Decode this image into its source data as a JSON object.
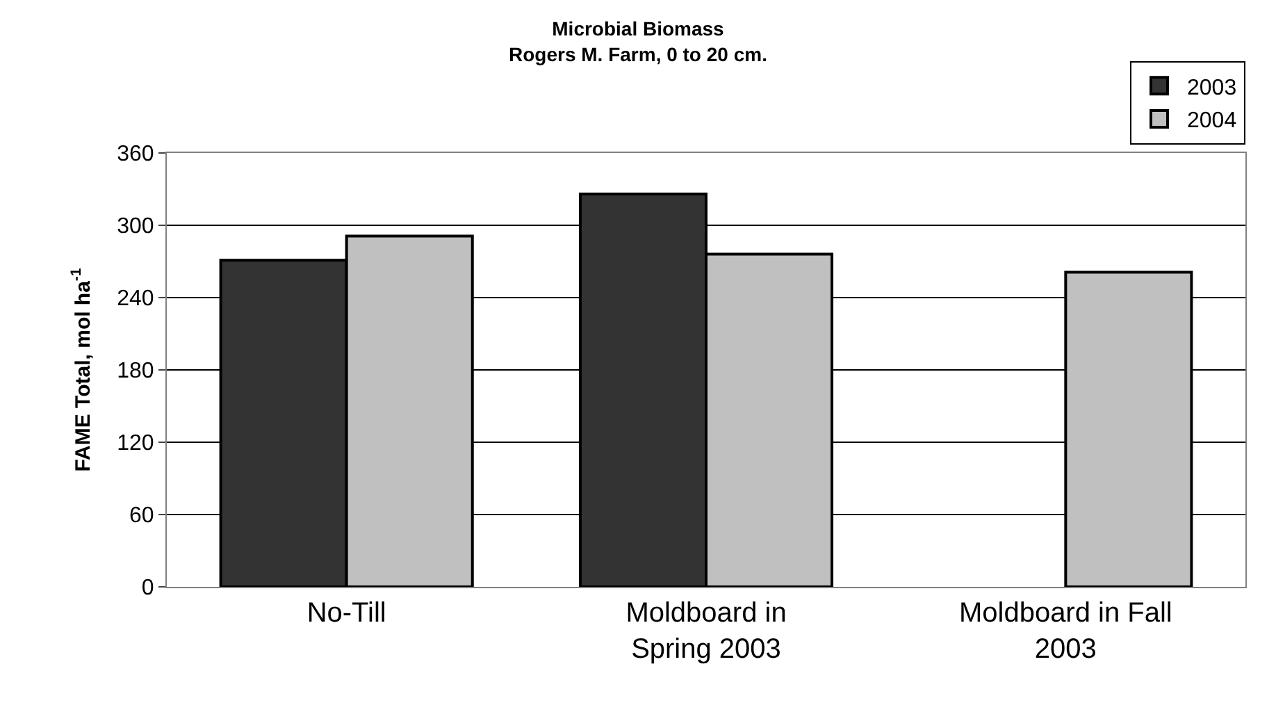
{
  "chart_data": {
    "type": "bar",
    "title": "Microbial Biomass",
    "subtitle": "Rogers M. Farm, 0 to 20 cm.",
    "ylabel": "FAME Total, mol ha$^{-1}$",
    "categories": [
      "No-Till",
      "Moldboard in Spring 2003",
      "Moldboard in Fall 2003"
    ],
    "series": [
      {
        "name": "2003",
        "color": "#333333",
        "values": [
          271,
          326,
          null
        ]
      },
      {
        "name": "2004",
        "color": "#c0c0c0",
        "values": [
          291,
          276,
          261
        ]
      }
    ],
    "ylim": [
      0,
      360
    ],
    "yticks": [
      0,
      60,
      120,
      180,
      240,
      300,
      360
    ],
    "grid": "y",
    "legend": "top right"
  }
}
